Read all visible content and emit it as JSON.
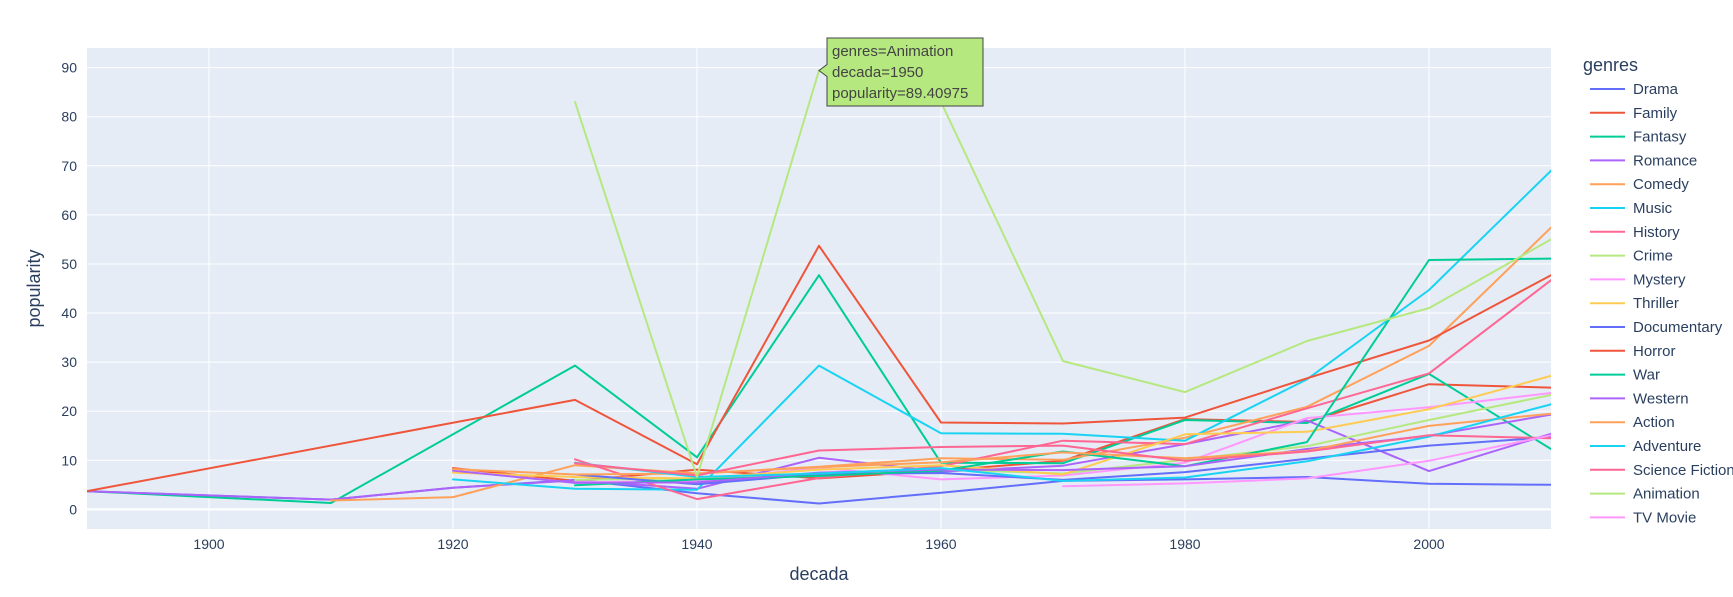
{
  "chart_data": {
    "type": "line",
    "title": "",
    "xlabel": "decada",
    "ylabel": "popularity",
    "xlim": [
      1890,
      2010
    ],
    "ylim": [
      -4,
      94
    ],
    "xticks": [
      1900,
      1920,
      1940,
      1960,
      1980,
      2000
    ],
    "yticks": [
      0,
      10,
      20,
      30,
      40,
      50,
      60,
      70,
      80,
      90
    ],
    "grid": true,
    "legend_title": "genres",
    "legend_position": "right",
    "series": [
      {
        "name": "Drama",
        "color": "#636efa",
        "x": [
          1890,
          1910,
          1920,
          1930,
          1940,
          1950,
          1960,
          1970,
          1980,
          1990,
          2000,
          2010
        ],
        "y": [
          3.7,
          2.0,
          4.4,
          6.0,
          3.3,
          1.2,
          3.4,
          5.8,
          6.1,
          6.6,
          5.2,
          5.0
        ]
      },
      {
        "name": "Family",
        "color": "#EF553B",
        "x": [
          1920,
          1930,
          1940,
          1950,
          1960,
          1970,
          1980,
          1990,
          2000,
          2010
        ],
        "y": [
          8.4,
          5.8,
          8.1,
          6.3,
          7.9,
          9.9,
          18.4,
          17.8,
          25.5,
          24.8
        ]
      },
      {
        "name": "Fantasy",
        "color": "#00cc96",
        "x": [
          1890,
          1910,
          1930,
          1940,
          1950,
          1960,
          1970,
          1980,
          1990,
          2000,
          2010
        ],
        "y": [
          3.7,
          1.3,
          29.3,
          10.6,
          47.7,
          9.5,
          9.4,
          18.2,
          17.6,
          27.6,
          12.3
        ]
      },
      {
        "name": "Romance",
        "color": "#ab63fa",
        "x": [
          1890,
          1910,
          1920,
          1930,
          1940,
          1950,
          1960,
          1970,
          1980,
          1990,
          2000,
          2010
        ],
        "y": [
          3.7,
          2.0,
          4.4,
          5.9,
          4.2,
          10.5,
          7.7,
          8.9,
          13.3,
          18.1,
          7.8,
          15.4
        ]
      },
      {
        "name": "Comedy",
        "color": "#FFA15A",
        "x": [
          1910,
          1920,
          1930,
          1940,
          1950,
          1960,
          1970,
          1980,
          1990,
          2000,
          2010
        ],
        "y": [
          1.8,
          2.5,
          9.0,
          7.3,
          8.7,
          10.4,
          10.1,
          14.6,
          20.9,
          33.3,
          57.4
        ]
      },
      {
        "name": "Music",
        "color": "#19d3f3",
        "x": [
          1920,
          1930,
          1940,
          1950,
          1960,
          1970,
          1980,
          1990,
          2000,
          2010
        ],
        "y": [
          6.1,
          4.2,
          4.0,
          29.3,
          15.5,
          15.4,
          14.0,
          26.5,
          44.7,
          69.0
        ]
      },
      {
        "name": "History",
        "color": "#FF6692",
        "x": [
          1930,
          1940,
          1950,
          1960,
          1970,
          1980,
          1990,
          2000,
          2010
        ],
        "y": [
          10.2,
          2.1,
          6.4,
          8.8,
          14.0,
          13.3,
          20.6,
          27.7,
          46.7
        ]
      },
      {
        "name": "Crime",
        "color": "#B6E880",
        "x": [
          1930,
          1940,
          1950,
          1960,
          1970,
          1980,
          1990,
          2000,
          2010
        ],
        "y": [
          6.0,
          6.3,
          6.9,
          8.1,
          7.3,
          10.1,
          12.9,
          18.2,
          23.3
        ]
      },
      {
        "name": "Mystery",
        "color": "#FF97FF",
        "x": [
          1930,
          1940,
          1950,
          1960,
          1970,
          1980,
          1990,
          2000,
          2010
        ],
        "y": [
          5.5,
          5.8,
          8.5,
          6.1,
          6.9,
          9.5,
          18.6,
          20.8,
          23.7
        ]
      },
      {
        "name": "Thriller",
        "color": "#FECB52",
        "x": [
          1920,
          1930,
          1940,
          1950,
          1960,
          1970,
          1980,
          1990,
          2000,
          2010
        ],
        "y": [
          7.5,
          6.6,
          6.3,
          8.1,
          9.0,
          7.1,
          15.3,
          15.8,
          20.4,
          27.2
        ]
      },
      {
        "name": "Documentary",
        "color": "#636efa",
        "x": [
          1930,
          1940,
          1950,
          1960,
          1970,
          1980,
          1990,
          2000,
          2010
        ],
        "y": [
          7.1,
          5.1,
          7.2,
          7.4,
          6.0,
          7.6,
          10.3,
          13.0,
          14.7
        ]
      },
      {
        "name": "Horror",
        "color": "#EF553B",
        "x": [
          1890,
          1930,
          1940,
          1950,
          1960,
          1970,
          1980,
          1990,
          2000,
          2010
        ],
        "y": [
          3.7,
          22.3,
          9.2,
          53.7,
          17.7,
          17.5,
          18.7,
          26.7,
          34.4,
          47.7
        ]
      },
      {
        "name": "War",
        "color": "#00cc96",
        "x": [
          1930,
          1940,
          1950,
          1960,
          1970,
          1980,
          1990,
          2000,
          2010
        ],
        "y": [
          4.9,
          6.1,
          6.8,
          7.9,
          11.8,
          8.8,
          13.7,
          50.8,
          51.1
        ]
      },
      {
        "name": "Western",
        "color": "#ab63fa",
        "x": [
          1920,
          1930,
          1940,
          1950,
          1960,
          1970,
          1980,
          1990,
          2000,
          2010
        ],
        "y": [
          7.9,
          5.4,
          5.5,
          7.5,
          8.1,
          8.0,
          8.8,
          12.3,
          15.0,
          19.3
        ]
      },
      {
        "name": "Action",
        "color": "#FFA15A",
        "x": [
          1920,
          1930,
          1940,
          1950,
          1960,
          1970,
          1980,
          1990,
          2000,
          2010
        ],
        "y": [
          8.2,
          7.1,
          7.3,
          8.6,
          9.6,
          11.6,
          10.4,
          11.9,
          17.0,
          19.5
        ]
      },
      {
        "name": "Adventure",
        "color": "#19d3f3",
        "x": [
          1930,
          1940,
          1950,
          1960,
          1970,
          1980,
          1990,
          2000,
          2010
        ],
        "y": [
          9.5,
          6.6,
          7.3,
          8.4,
          5.8,
          6.5,
          9.8,
          14.8,
          21.4
        ]
      },
      {
        "name": "Science Fiction",
        "color": "#FF6692",
        "x": [
          1930,
          1940,
          1950,
          1960,
          1970,
          1980,
          1990,
          2000,
          2010
        ],
        "y": [
          9.4,
          6.9,
          12.0,
          12.7,
          13.0,
          9.9,
          11.8,
          15.1,
          14.5
        ]
      },
      {
        "name": "Animation",
        "color": "#B6E880",
        "x": [
          1930,
          1940,
          1950,
          1960,
          1970,
          1980,
          1990,
          2000,
          2010
        ],
        "y": [
          83.0,
          6.6,
          89.40975,
          83.0,
          30.2,
          23.9,
          34.3,
          41.0,
          55.0
        ]
      },
      {
        "name": "TV Movie",
        "color": "#FF97FF",
        "x": [
          1970,
          1980,
          1990,
          2000,
          2010
        ],
        "y": [
          4.7,
          5.3,
          6.3,
          9.9,
          15.1
        ]
      }
    ],
    "hover": {
      "series_index": 17,
      "point_index": 2,
      "lines": [
        "genres=Animation",
        "decada=1950",
        "popularity=89.40975"
      ]
    }
  }
}
